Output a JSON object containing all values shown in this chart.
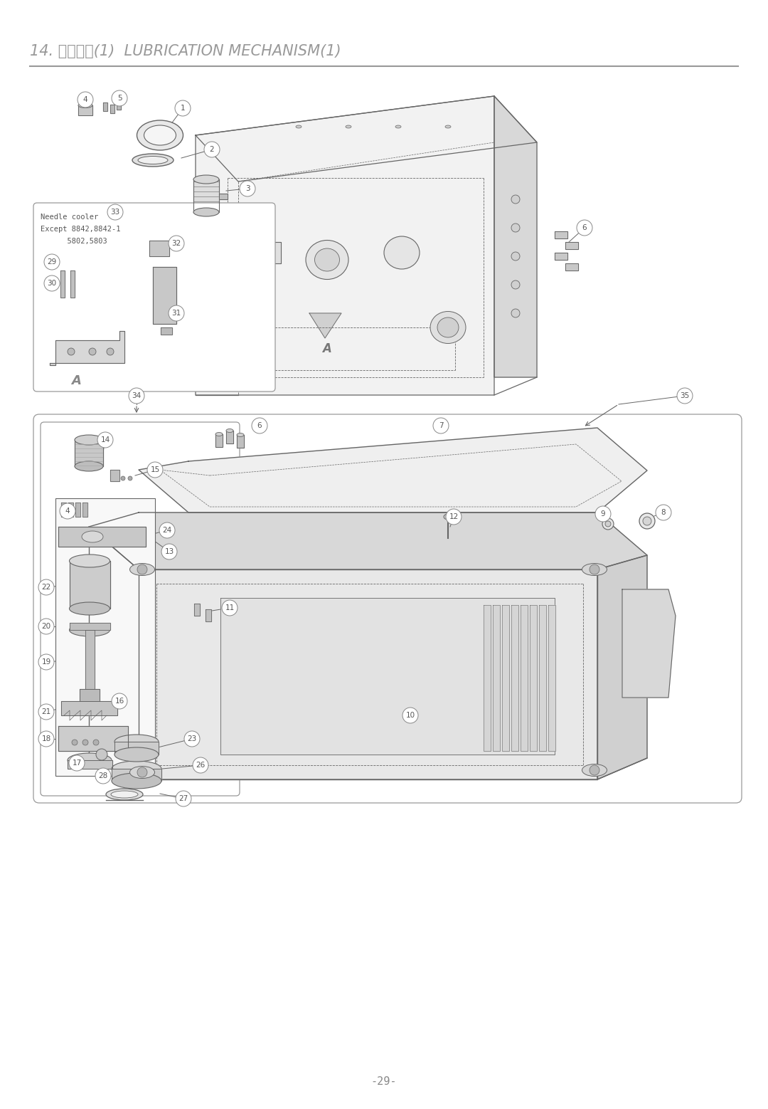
{
  "title": "14. 給油機構(1)  LUBRICATION MECHANISM(1)",
  "page_number": "-29-",
  "bg_color": "#ffffff",
  "lc": "#666666",
  "tc": "#555555",
  "tc2": "#888888",
  "fig_width": 10.8,
  "fig_height": 15.58,
  "dpi": 100,
  "needle_cooler": [
    "Needle cooler",
    "Except 8842,8842-1",
    "      5802,5803"
  ]
}
